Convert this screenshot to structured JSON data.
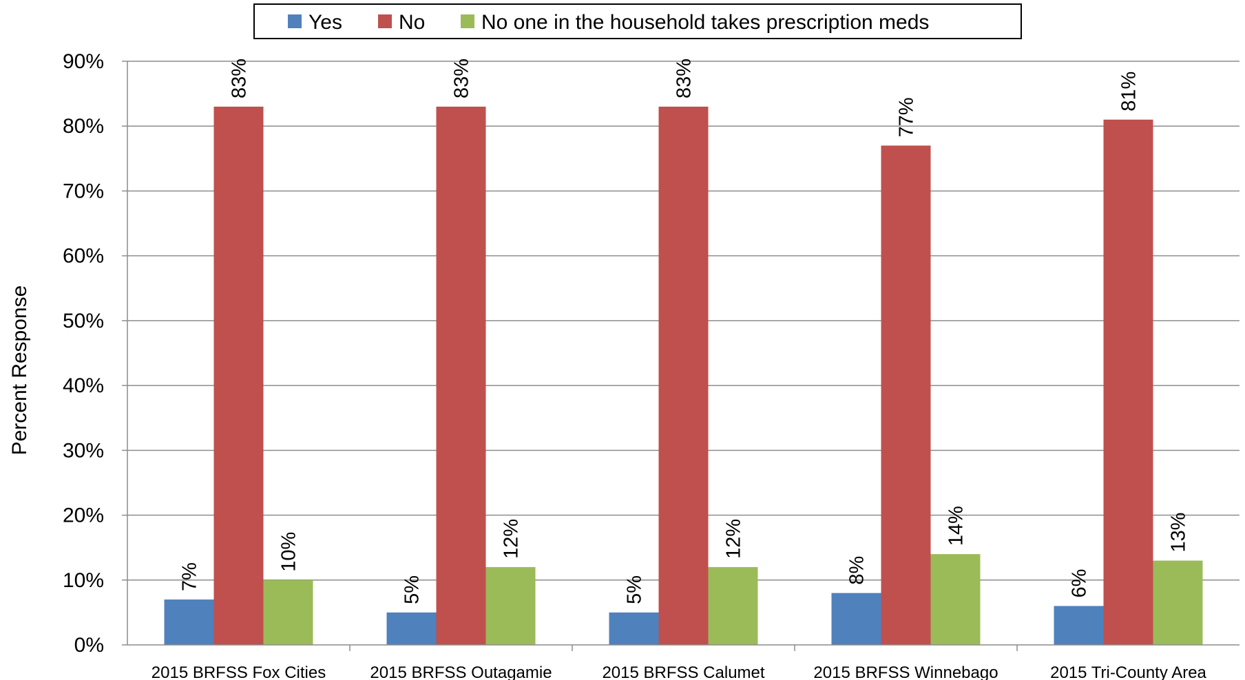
{
  "chart_data": {
    "type": "bar",
    "categories": [
      "2015 BRFSS Fox Cities",
      "2015 BRFSS Outagamie",
      "2015 BRFSS Calumet",
      "2015 BRFSS Winnebago",
      "2015 Tri-County Area"
    ],
    "series": [
      {
        "name": "Yes",
        "color": "#4f81bd",
        "values": [
          7,
          5,
          5,
          8,
          6
        ]
      },
      {
        "name": "No",
        "color": "#c0504d",
        "values": [
          83,
          83,
          83,
          77,
          81
        ]
      },
      {
        "name": "No one in the household takes prescription meds",
        "color": "#9bbb59",
        "values": [
          10,
          12,
          12,
          14,
          13
        ]
      }
    ],
    "ylabel": "Percent Response",
    "ylim": [
      0,
      90
    ],
    "yticks": [
      "0%",
      "10%",
      "20%",
      "30%",
      "40%",
      "50%",
      "60%",
      "70%",
      "80%",
      "90%"
    ],
    "value_suffix": "%",
    "grid": true,
    "legend_position": "top"
  }
}
